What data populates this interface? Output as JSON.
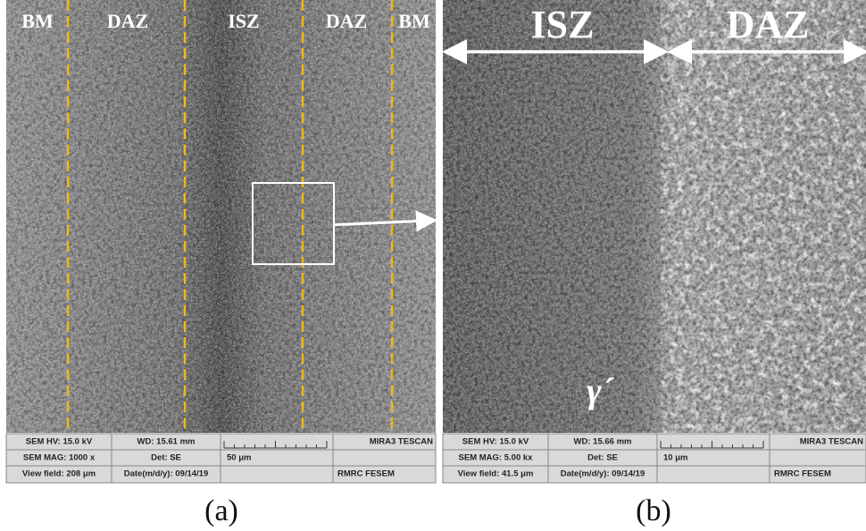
{
  "panels": [
    {
      "zone_labels": [
        "BM",
        "DAZ",
        "ISZ",
        "DAZ",
        "BM"
      ],
      "info": {
        "hv": "SEM HV: 15.0 kV",
        "wd": "WD: 15.61 mm",
        "brand": "MIRA3 TESCAN",
        "mag": "SEM MAG: 1000 x",
        "det": "Det: SE",
        "scale": "50 μm",
        "view": "View field: 208 μm",
        "date": "Date(m/d/y): 09/14/19",
        "lab": "RMRC  FESEM"
      },
      "caption": "(a)"
    },
    {
      "zone_labels": [
        "ISZ",
        "DAZ"
      ],
      "phase_label": "γ´",
      "info": {
        "hv": "SEM HV: 15.0 kV",
        "wd": "WD: 15.66 mm",
        "brand": "MIRA3 TESCAN",
        "mag": "SEM MAG: 5.00 kx",
        "det": "Det: SE",
        "scale": "10 μm",
        "view": "View field: 41.5 μm",
        "date": "Date(m/d/y): 09/14/19",
        "lab": "RMRC  FESEM"
      },
      "caption": "(b)"
    }
  ]
}
